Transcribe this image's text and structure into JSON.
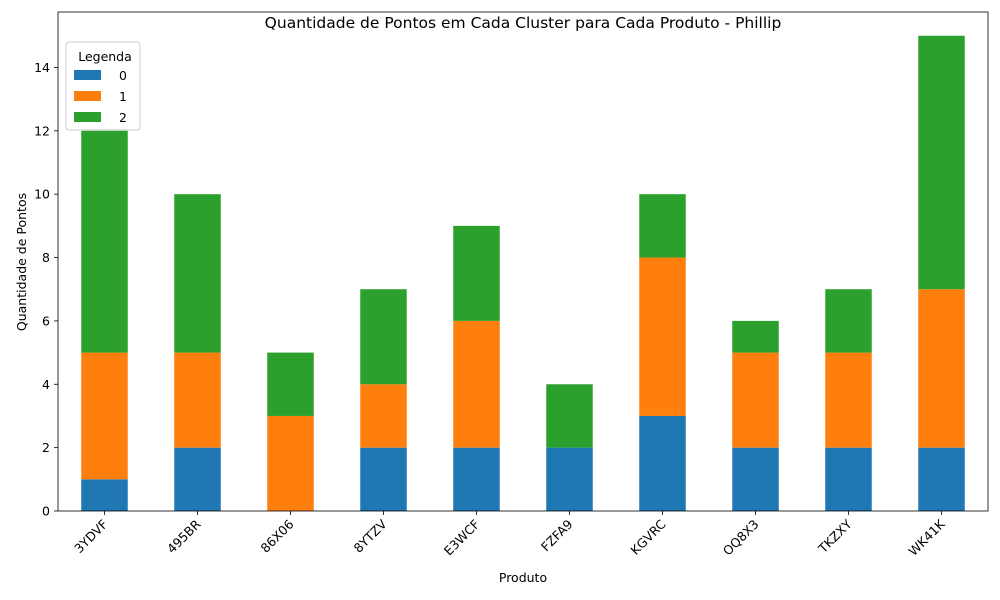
{
  "chart_data": {
    "type": "bar",
    "stacked": true,
    "title": "Quantidade de Pontos em Cada Cluster para Cada Produto - Phillip",
    "xlabel": "Produto",
    "ylabel": "Quantidade de Pontos",
    "ylim": [
      0,
      15.75
    ],
    "yticks": [
      0,
      2,
      4,
      6,
      8,
      10,
      12,
      14
    ],
    "categories": [
      "3YDVF",
      "495BR",
      "86X06",
      "8YTZV",
      "E3WCF",
      "FZFA9",
      "KGVRC",
      "OQ8X3",
      "TKZXY",
      "WK41K"
    ],
    "series": [
      {
        "name": "0",
        "color": "#1f77b4",
        "values": [
          1,
          2,
          0,
          2,
          2,
          2,
          3,
          2,
          2,
          2
        ]
      },
      {
        "name": "1",
        "color": "#ff7f0e",
        "values": [
          4,
          3,
          3,
          2,
          4,
          0,
          5,
          3,
          3,
          5
        ]
      },
      {
        "name": "2",
        "color": "#2ca02c",
        "values": [
          7,
          5,
          2,
          3,
          3,
          2,
          2,
          1,
          2,
          8
        ]
      }
    ],
    "legend": {
      "title": "Legenda",
      "placement": "upper-left"
    },
    "grid": false
  }
}
